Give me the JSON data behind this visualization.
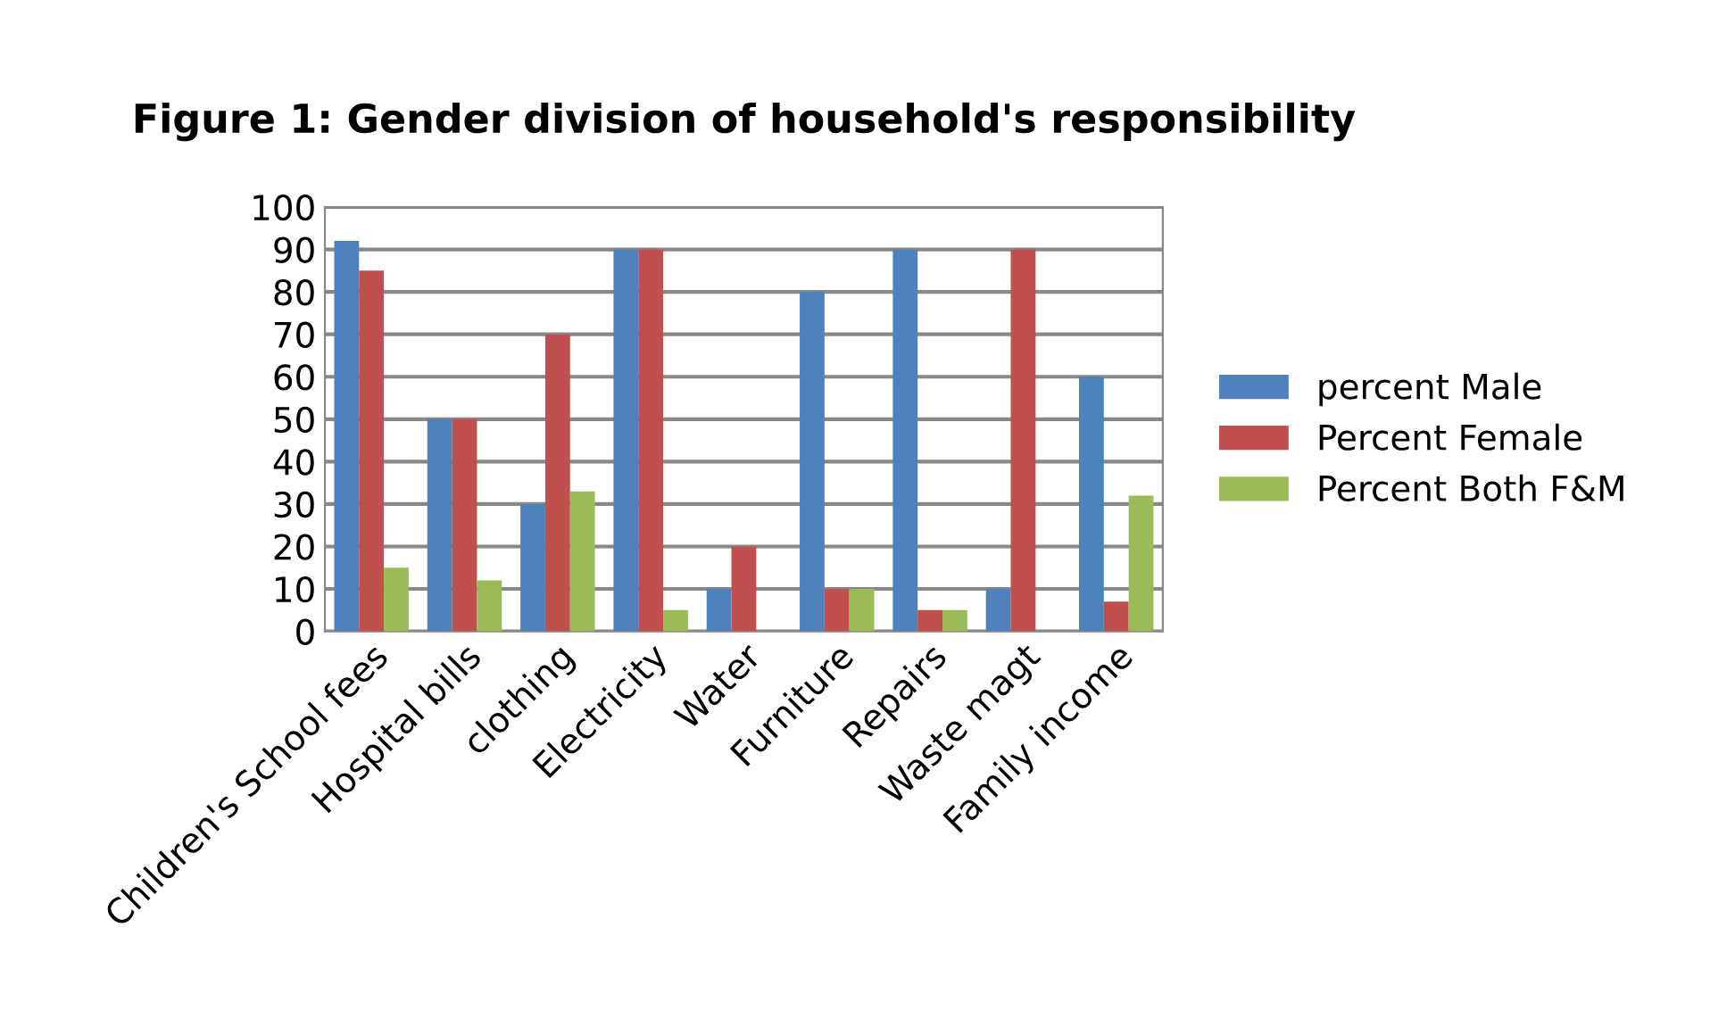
{
  "chart_data": {
    "type": "bar",
    "title": "Figure 1: Gender division of household's responsibility",
    "categories": [
      "Children's School fees",
      "Hospital bills",
      "clothing",
      "Electricity",
      "Water",
      "Furniture",
      "Repairs",
      "Waste magt",
      "Family income"
    ],
    "series": [
      {
        "name": "percent Male",
        "color": "#4f81bd",
        "values": [
          92,
          50,
          30,
          90,
          10,
          80,
          90,
          10,
          60
        ]
      },
      {
        "name": "Percent Female",
        "color": "#c0504d",
        "values": [
          85,
          50,
          70,
          90,
          20,
          10,
          5,
          90,
          7
        ]
      },
      {
        "name": "Percent Both F&M",
        "color": "#9bbb59",
        "values": [
          15,
          12,
          33,
          5,
          0,
          10,
          5,
          0,
          32
        ]
      }
    ],
    "ylim": [
      0,
      100
    ],
    "yticks": [
      0,
      10,
      20,
      30,
      40,
      50,
      60,
      70,
      80,
      90,
      100
    ],
    "grid": "y",
    "legend": "right"
  }
}
